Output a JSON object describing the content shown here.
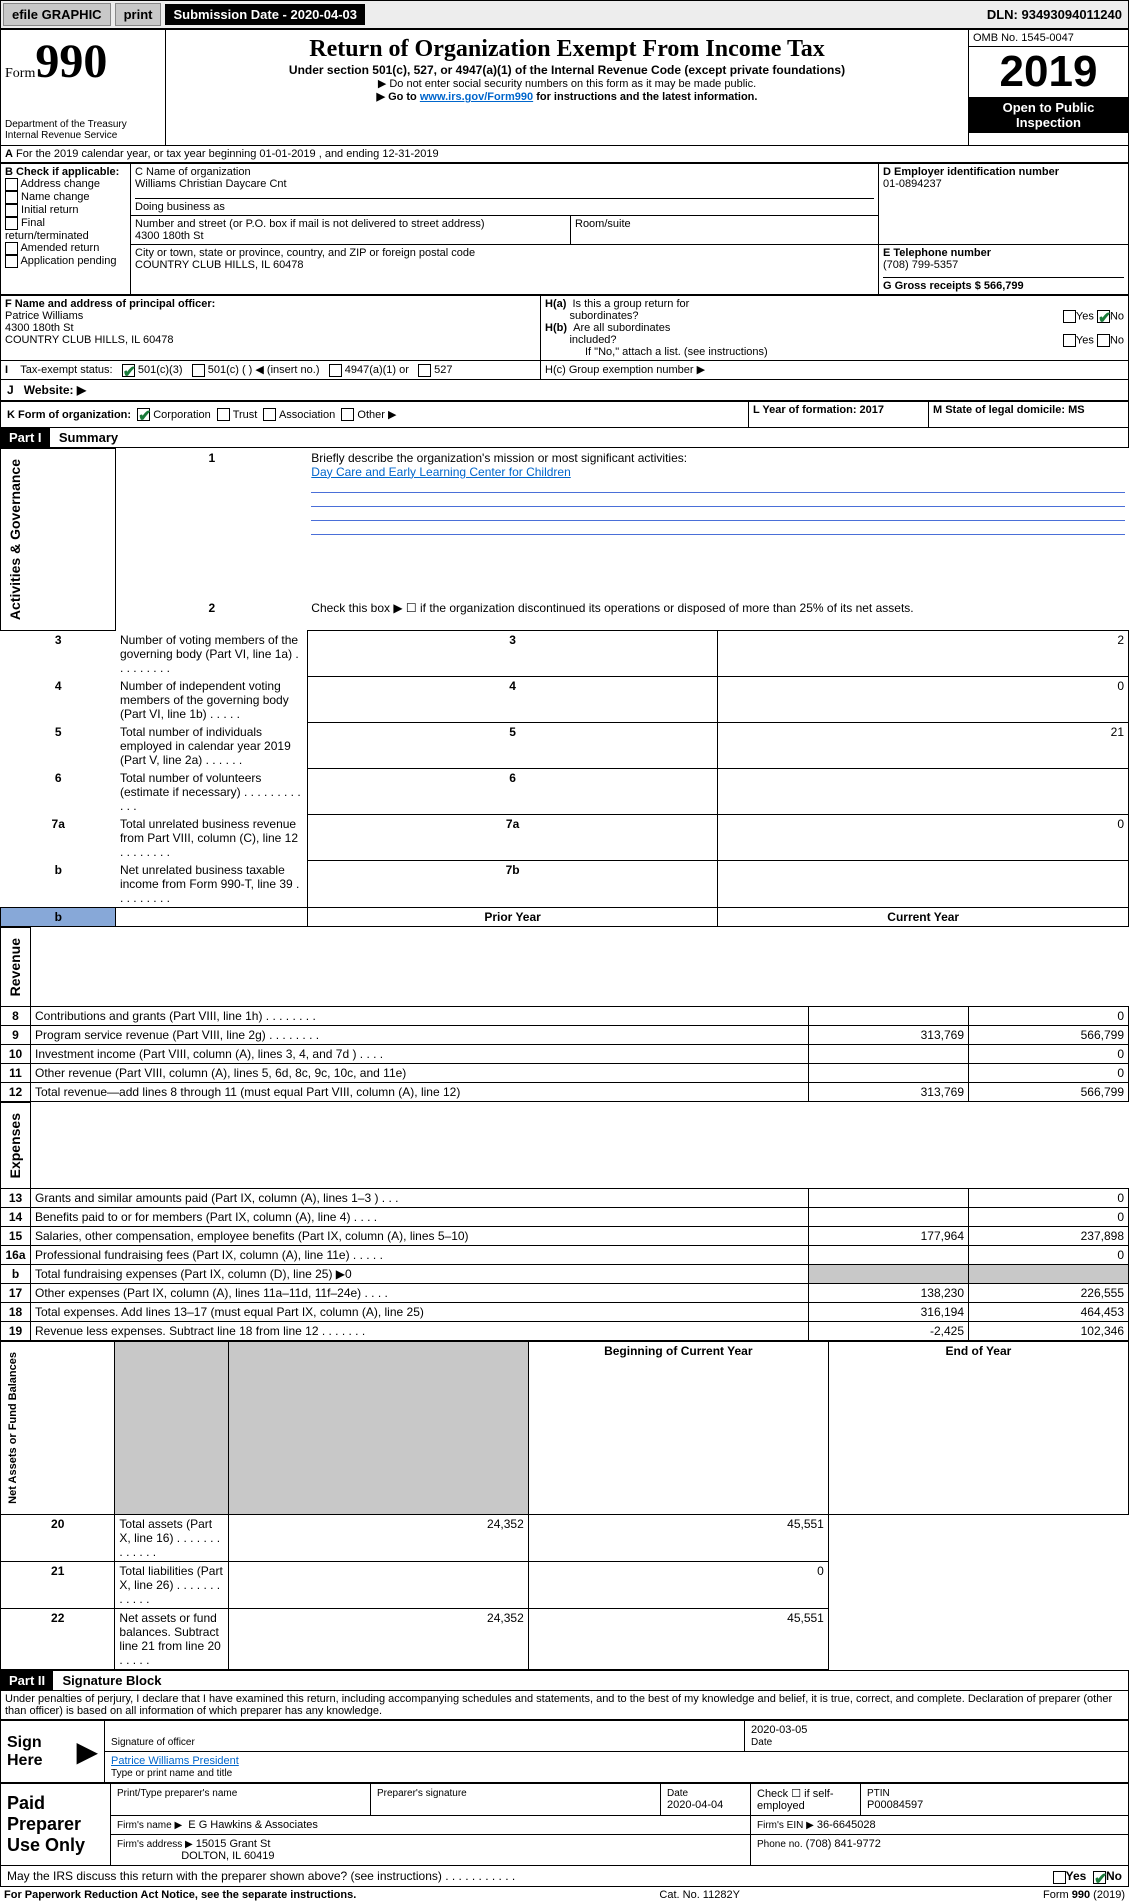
{
  "topbar": {
    "efile": "efile GRAPHIC",
    "print": "print",
    "sub_label": "Submission Date - 2020-04-03",
    "dln": "DLN: 93493094011240"
  },
  "header": {
    "form_word": "Form",
    "form_num": "990",
    "dept1": "Department of the Treasury",
    "dept2": "Internal Revenue Service",
    "title": "Return of Organization Exempt From Income Tax",
    "subtitle": "Under section 501(c), 527, or 4947(a)(1) of the Internal Revenue Code (except private foundations)",
    "note1": "▶ Do not enter social security numbers on this form as it may be made public.",
    "note2_pre": "▶ Go to ",
    "note2_link": "www.irs.gov/Form990",
    "note2_post": " for instructions and the latest information.",
    "omb": "OMB No. 1545-0047",
    "year": "2019",
    "open_pub": "Open to Public Inspection"
  },
  "sectionA": {
    "period": "For the 2019 calendar year, or tax year beginning 01-01-2019    , and ending 12-31-2019",
    "b_label": "B Check if applicable:",
    "b_opts": [
      "Address change",
      "Name change",
      "Initial return",
      "Final return/terminated",
      "Amended return",
      "Application pending"
    ],
    "c_label": "C Name of organization",
    "org_name": "Williams Christian Daycare Cnt",
    "dba": "Doing business as",
    "addr_label": "Number and street (or P.O. box if mail is not delivered to street address)",
    "room": "Room/suite",
    "addr": "4300 180th St",
    "city_label": "City or town, state or province, country, and ZIP or foreign postal code",
    "city": "COUNTRY CLUB HILLS, IL  60478",
    "d_label": "D Employer identification number",
    "ein": "01-0894237",
    "e_label": "E Telephone number",
    "phone": "(708) 799-5357",
    "g_label": "G Gross receipts $ 566,799",
    "f_label": "F  Name and address of principal officer:",
    "officer_name": "Patrice Williams",
    "officer_addr1": "4300 180th St",
    "officer_addr2": "COUNTRY CLUB HILLS, IL  60478",
    "h_a": "H(a)  Is this a group return for subordinates?",
    "h_b": "H(b)  Are all subordinates included?",
    "h_b_note": "If \"No,\" attach a list. (see instructions)",
    "h_c": "H(c)  Group exemption number ▶",
    "yes": "Yes",
    "no": "No",
    "i_label": "Tax-exempt status:",
    "i_501c3": "501(c)(3)",
    "i_501c": "501(c) (  ) ◀ (insert no.)",
    "i_4947": "4947(a)(1) or",
    "i_527": "527",
    "j_label": "Website: ▶",
    "k_label": "K Form of organization:",
    "k_corp": "Corporation",
    "k_trust": "Trust",
    "k_assoc": "Association",
    "k_other": "Other ▶",
    "l_label": "L Year of formation: 2017",
    "m_label": "M State of legal domicile: MS"
  },
  "part1": {
    "hdr": "Part I",
    "title": "Summary",
    "q1": "Briefly describe the organization's mission or most significant activities:",
    "mission": "Day Care and Early Learning Center for Children",
    "q2": "Check this box ▶ ☐  if the organization discontinued its operations or disposed of more than 25% of its net assets.",
    "rows": [
      {
        "n": "3",
        "t": "Number of voting members of the governing body (Part VI, line 1a)   .    .    .    .    .    .    .    .    .",
        "box": "3",
        "v": "2"
      },
      {
        "n": "4",
        "t": "Number of independent voting members of the governing body (Part VI, line 1b)   .    .    .    .    .",
        "box": "4",
        "v": "0"
      },
      {
        "n": "5",
        "t": "Total number of individuals employed in calendar year 2019 (Part V, line 2a)  .    .    .    .    .    .",
        "box": "5",
        "v": "21"
      },
      {
        "n": "6",
        "t": "Total number of volunteers (estimate if necessary)   .    .    .    .    .    .    .    .    .    .    .    .",
        "box": "6",
        "v": ""
      },
      {
        "n": "7a",
        "t": "Total unrelated business revenue from Part VIII, column (C), line 12   .    .    .    .    .    .    .    .",
        "box": "7a",
        "v": "0"
      },
      {
        "n": "b",
        "t": "Net unrelated business taxable income from Form 990-T, line 39   .    .    .    .    .    .    .    .    .",
        "box": "7b",
        "v": ""
      }
    ],
    "col_prior": "Prior Year",
    "col_current": "Current Year",
    "rev_rows": [
      {
        "n": "8",
        "t": "Contributions and grants (Part VIII, line 1h)  .    .    .    .    .    .    .    .",
        "p": "",
        "c": "0"
      },
      {
        "n": "9",
        "t": "Program service revenue (Part VIII, line 2g)  .    .    .    .    .    .    .    .",
        "p": "313,769",
        "c": "566,799"
      },
      {
        "n": "10",
        "t": "Investment income (Part VIII, column (A), lines 3, 4, and 7d )  .    .    .    .",
        "p": "",
        "c": "0"
      },
      {
        "n": "11",
        "t": "Other revenue (Part VIII, column (A), lines 5, 6d, 8c, 9c, 10c, and 11e)",
        "p": "",
        "c": "0"
      },
      {
        "n": "12",
        "t": "Total revenue—add lines 8 through 11 (must equal Part VIII, column (A), line 12)",
        "p": "313,769",
        "c": "566,799"
      }
    ],
    "exp_rows": [
      {
        "n": "13",
        "t": "Grants and similar amounts paid (Part IX, column (A), lines 1–3 )  .    .    .",
        "p": "",
        "c": "0"
      },
      {
        "n": "14",
        "t": "Benefits paid to or for members (Part IX, column (A), line 4)  .    .    .    .",
        "p": "",
        "c": "0"
      },
      {
        "n": "15",
        "t": "Salaries, other compensation, employee benefits (Part IX, column (A), lines 5–10)",
        "p": "177,964",
        "c": "237,898"
      },
      {
        "n": "16a",
        "t": "Professional fundraising fees (Part IX, column (A), line 11e)  .    .    .    .    .",
        "p": "",
        "c": "0"
      },
      {
        "n": "b",
        "t": "Total fundraising expenses (Part IX, column (D), line 25) ▶0",
        "p": "gray",
        "c": "gray"
      },
      {
        "n": "17",
        "t": "Other expenses (Part IX, column (A), lines 11a–11d, 11f–24e)  .    .    .    .",
        "p": "138,230",
        "c": "226,555"
      },
      {
        "n": "18",
        "t": "Total expenses. Add lines 13–17 (must equal Part IX, column (A), line 25)",
        "p": "316,194",
        "c": "464,453"
      },
      {
        "n": "19",
        "t": "Revenue less expenses. Subtract line 18 from line 12  .    .    .    .    .    .    .",
        "p": "-2,425",
        "c": "102,346"
      }
    ],
    "col_begin": "Beginning of Current Year",
    "col_end": "End of Year",
    "na_rows": [
      {
        "n": "20",
        "t": "Total assets (Part X, line 16)  .    .    .    .    .    .    .    .    .    .    .    .    .",
        "p": "24,352",
        "c": "45,551"
      },
      {
        "n": "21",
        "t": "Total liabilities (Part X, line 26)  .    .    .    .    .    .    .    .    .    .    .    .",
        "p": "",
        "c": "0"
      },
      {
        "n": "22",
        "t": "Net assets or fund balances. Subtract line 21 from line 20  .    .    .    .    .",
        "p": "24,352",
        "c": "45,551"
      }
    ],
    "vlabels": {
      "gov": "Activities & Governance",
      "rev": "Revenue",
      "exp": "Expenses",
      "na": "Net Assets or Fund Balances"
    }
  },
  "part2": {
    "hdr": "Part II",
    "title": "Signature Block",
    "decl": "Under penalties of perjury, I declare that I have examined this return, including accompanying schedules and statements, and to the best of my knowledge and belief, it is true, correct, and complete. Declaration of preparer (other than officer) is based on all information of which preparer has any knowledge.",
    "sign_here": "Sign Here",
    "sig_officer": "Signature of officer",
    "sig_date": "2020-03-05",
    "sig_date_lbl": "Date",
    "officer": "Patrice Williams  President",
    "officer_lbl": "Type or print name and title",
    "paid": "Paid Preparer Use Only",
    "prep_name_lbl": "Print/Type preparer's name",
    "prep_sig_lbl": "Preparer's signature",
    "prep_date_lbl": "Date",
    "prep_date": "2020-04-04",
    "check_self": "Check ☐ if self-employed",
    "ptin_lbl": "PTIN",
    "ptin": "P00084597",
    "firm_name_lbl": "Firm's name    ▶",
    "firm_name": "E G Hawkins & Associates",
    "firm_ein_lbl": "Firm's EIN ▶",
    "firm_ein": "36-6645028",
    "firm_addr_lbl": "Firm's address ▶",
    "firm_addr1": "15015 Grant St",
    "firm_addr2": "DOLTON, IL  60419",
    "firm_phone_lbl": "Phone no.",
    "firm_phone": "(708) 841-9772",
    "discuss": "May the IRS discuss this return with the preparer shown above? (see instructions)    .    .    .    .    .    .    .    .    .    .    ."
  },
  "footer": {
    "pra": "For Paperwork Reduction Act Notice, see the separate instructions.",
    "cat": "Cat. No. 11282Y",
    "form": "Form 990 (2019)"
  }
}
